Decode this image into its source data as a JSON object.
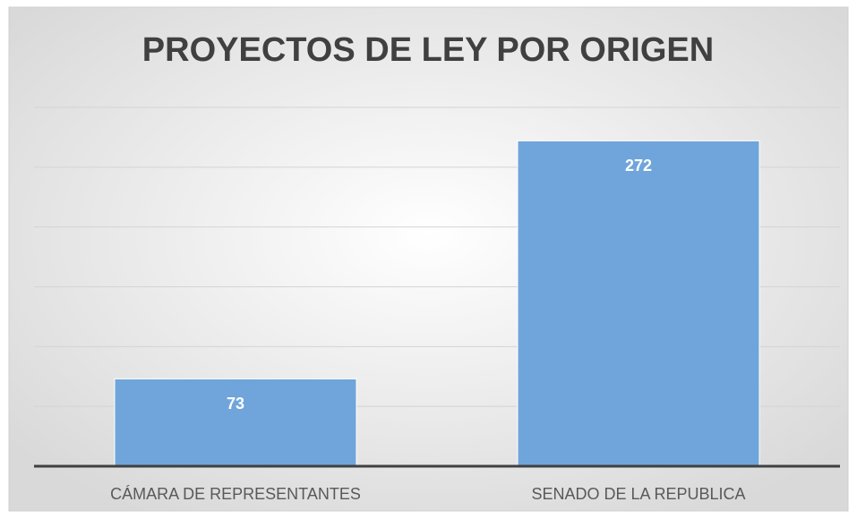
{
  "chart_data": {
    "type": "bar",
    "title": "PROYECTOS DE LEY POR ORIGEN",
    "categories": [
      "CÁMARA DE REPRESENTANTES",
      "SENADO DE LA REPUBLICA"
    ],
    "values": [
      73,
      272
    ],
    "color": "#6fa5da",
    "ylim": [
      0,
      300
    ],
    "yticks": [
      0,
      50,
      100,
      150,
      200,
      250,
      300
    ],
    "grid": true
  }
}
